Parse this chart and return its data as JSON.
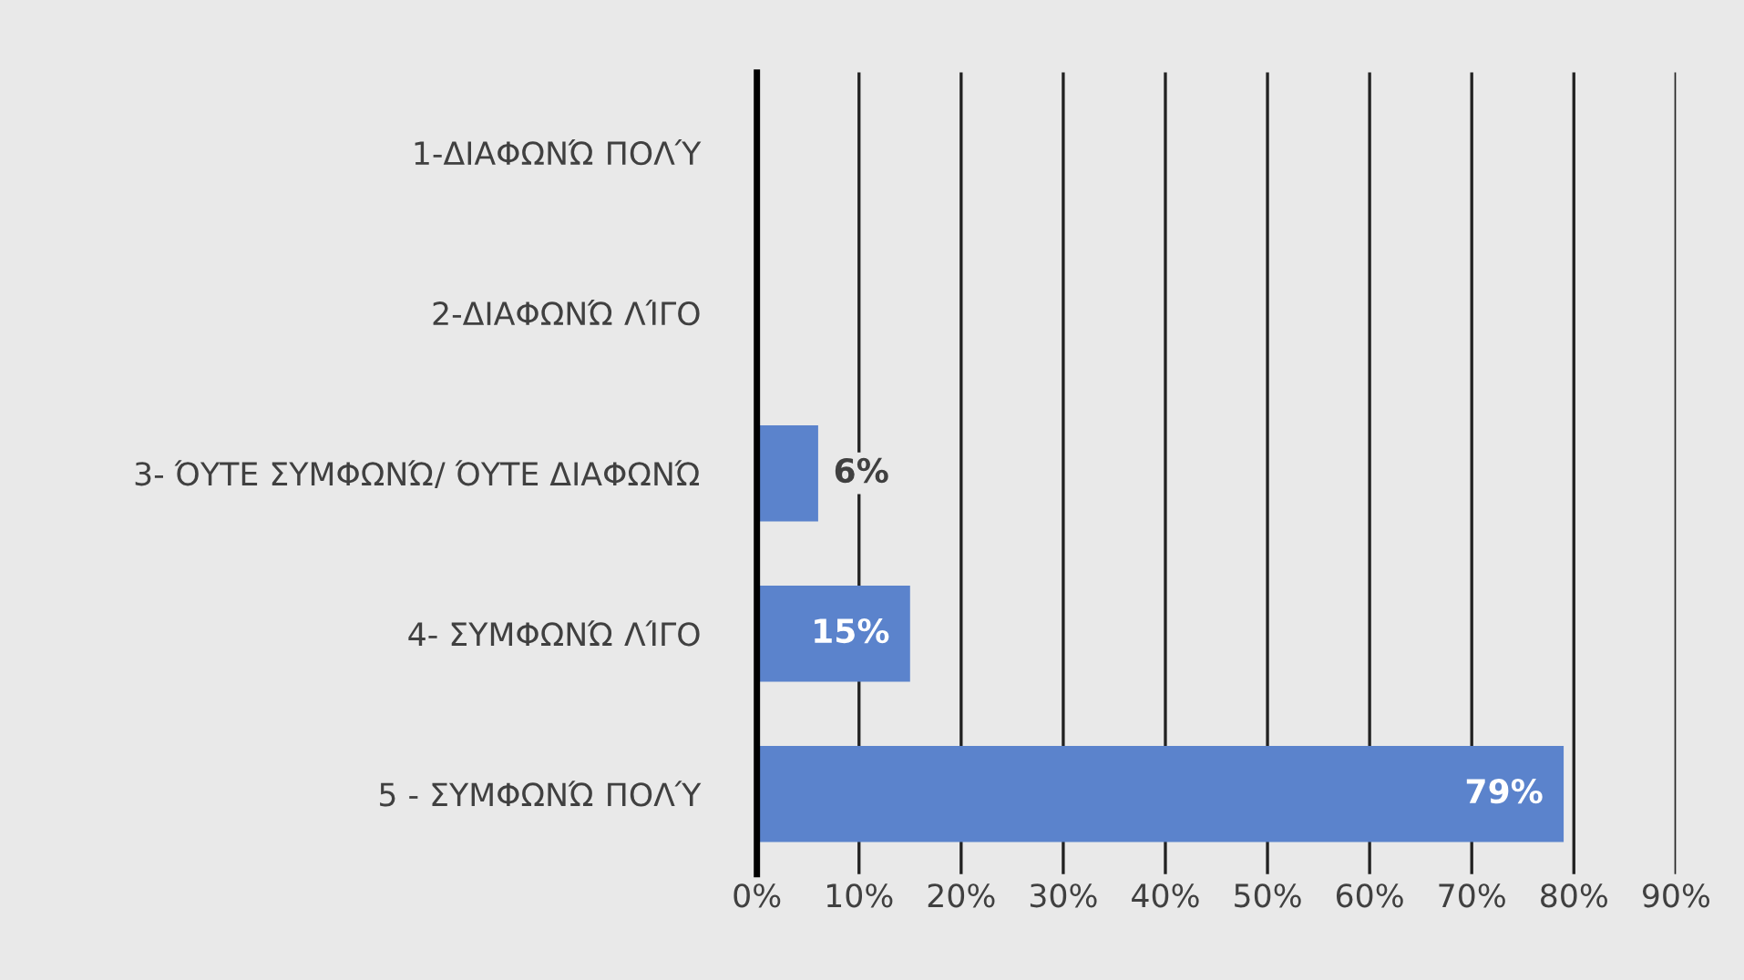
{
  "chart_data": {
    "type": "bar",
    "orientation": "horizontal",
    "categories": [
      "1-ΔΙΑΦΩΝΏ ΠΟΛΎ",
      "2-ΔΙΑΦΩΝΏ ΛΊΓΟ",
      "3- ΌΥΤΕ ΣΥΜΦΩΝΏ/ ΌΥΤΕ ΔΙΑΦΩΝΏ",
      "4- ΣΥΜΦΩΝΏ ΛΊΓΟ",
      "5 - ΣΥΜΦΩΝΏ ΠΟΛΎ"
    ],
    "values": [
      0,
      0,
      6,
      15,
      79
    ],
    "value_labels": [
      null,
      null,
      "6%",
      "15%",
      "79%"
    ],
    "color": "#5b83cc",
    "xlim": [
      0,
      90
    ],
    "xticks": [
      {
        "value": 0,
        "label": "0%"
      },
      {
        "value": 10,
        "label": "10%"
      },
      {
        "value": 20,
        "label": "20%"
      },
      {
        "value": 30,
        "label": "30%"
      },
      {
        "value": 40,
        "label": "40%"
      },
      {
        "value": 50,
        "label": "50%"
      },
      {
        "value": 60,
        "label": "60%"
      },
      {
        "value": 70,
        "label": "70%"
      },
      {
        "value": 80,
        "label": "80%"
      },
      {
        "value": 90,
        "label": "90%"
      }
    ],
    "grid": "x"
  }
}
